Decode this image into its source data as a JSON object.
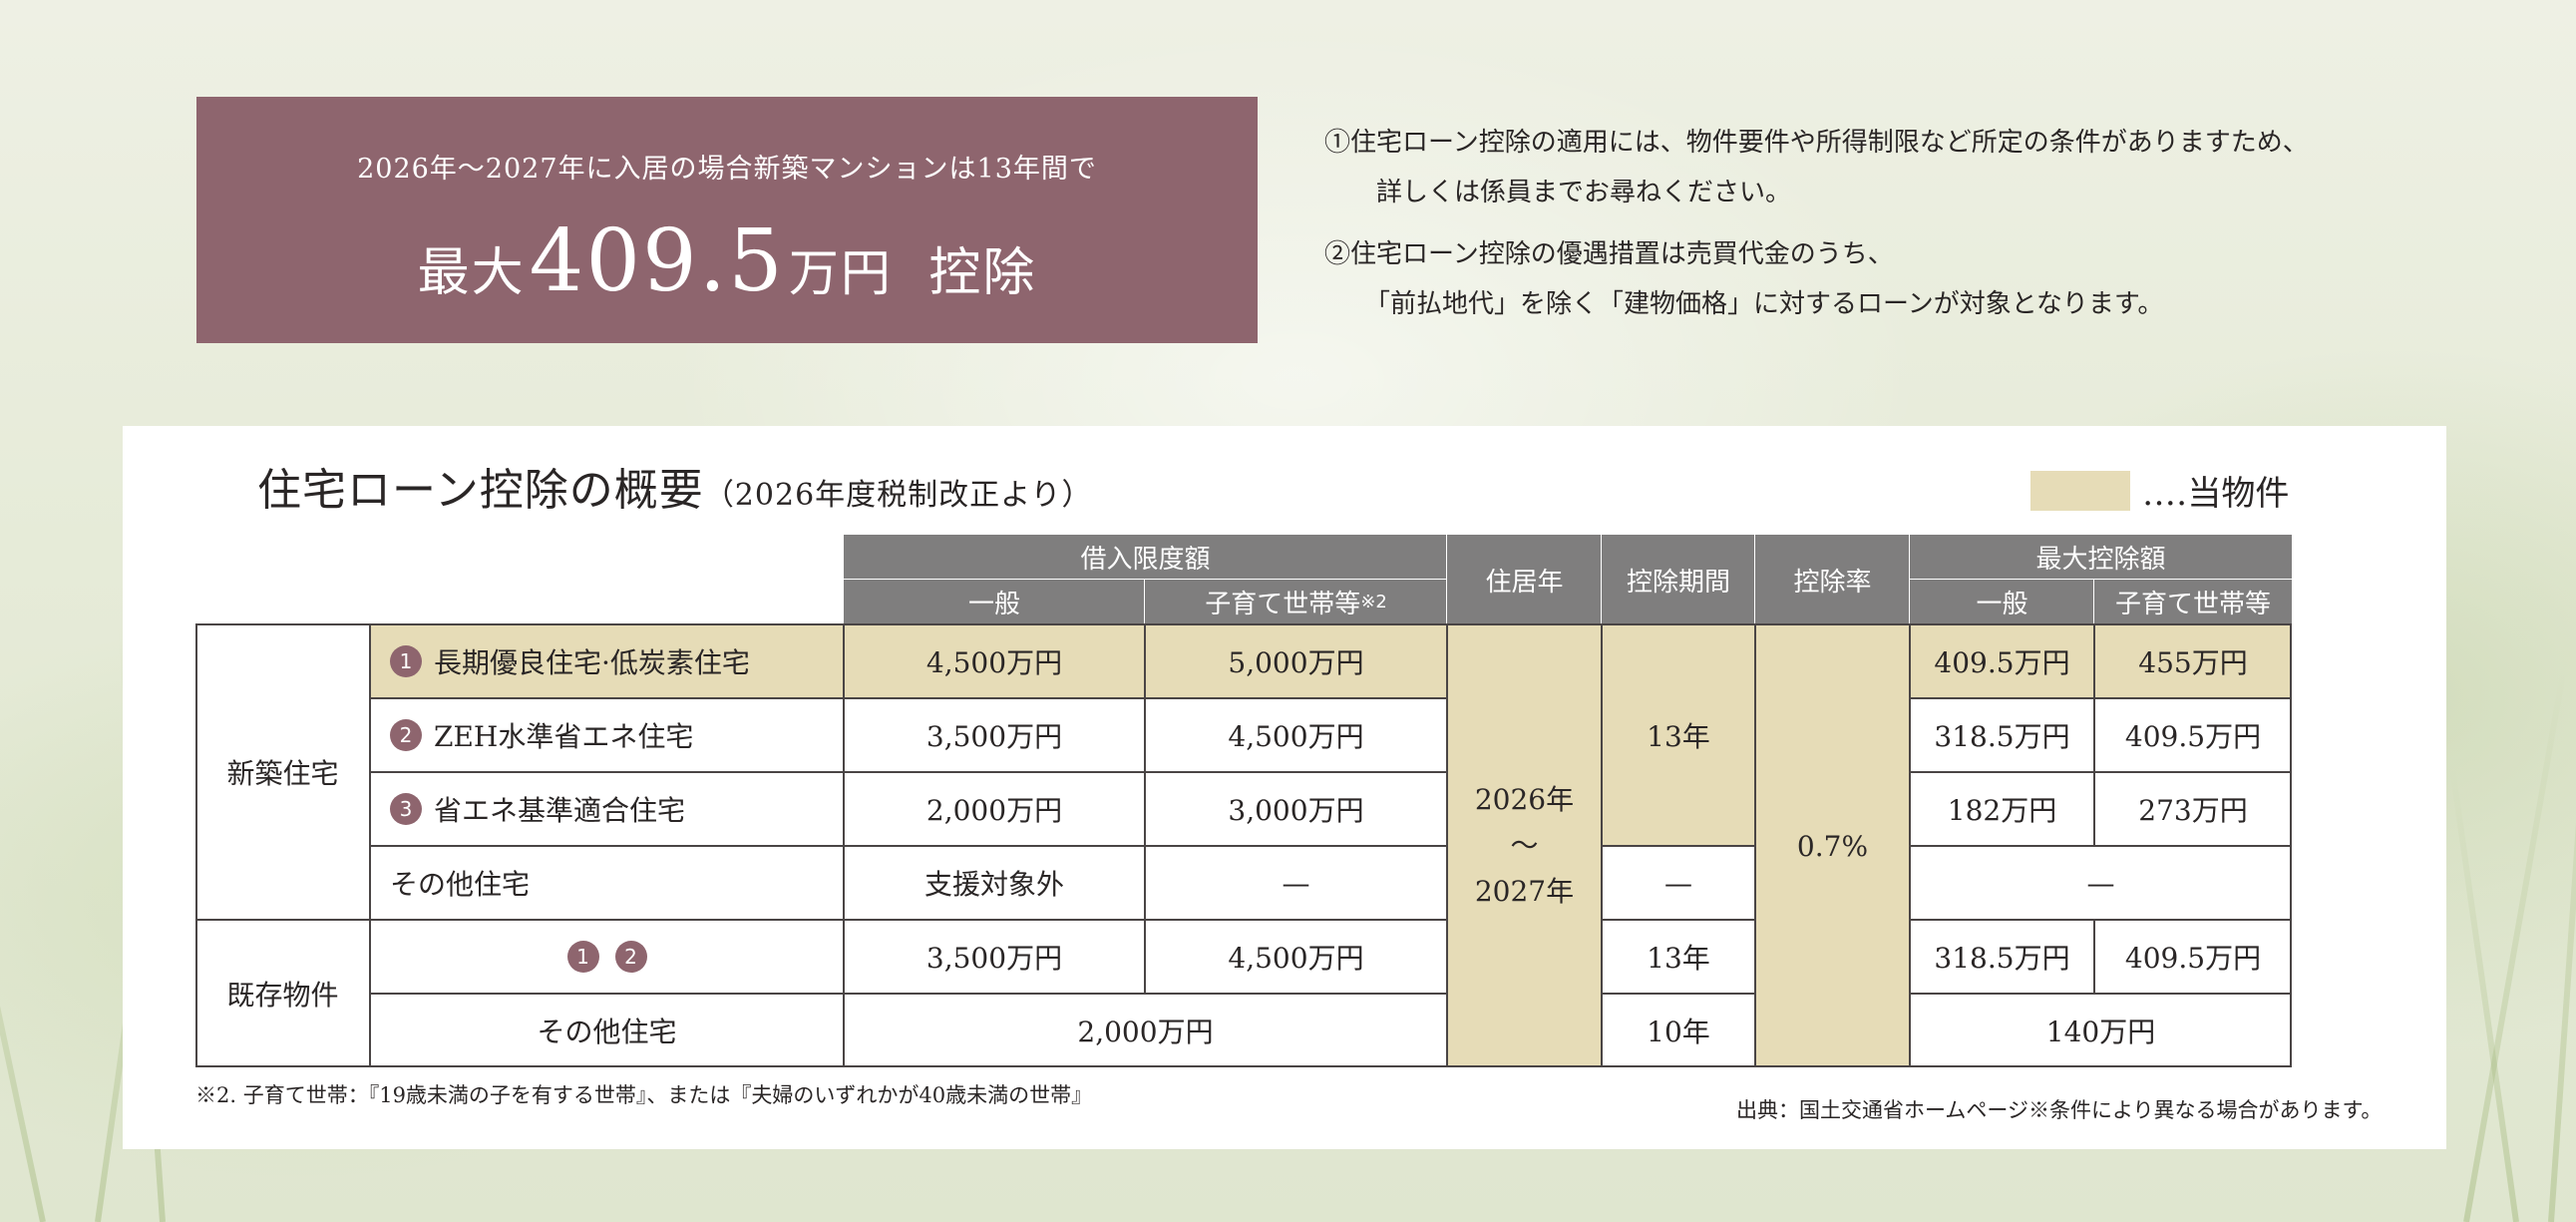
{
  "promo": {
    "subtitle": "2026年～2027年に入居の場合新築マンションは13年間で",
    "prefix": "最大",
    "amount": "409.5",
    "unit": "万円",
    "suffix": "控除"
  },
  "notes": [
    {
      "line1": "①住宅ローン控除の適用には、物件要件や所得制限など所定の条件がありますため、",
      "line2": "詳しくは係員までお尋ねください。"
    },
    {
      "line1": "②住宅ローン控除の優遇措置は売買代金のうち、",
      "line2": "「前払地代」を除く「建物価格」に対するローンが対象となります。"
    }
  ],
  "panel": {
    "title": "住宅ローン控除の概要",
    "title_sub": "（2026年度税制改正より）",
    "legend_label": "‥‥当物件"
  },
  "table": {
    "headers": {
      "borrowing_limit": "借入限度額",
      "general": "一般",
      "child_household": "子育て世帯等",
      "child_household_note": "※2",
      "residence_year": "住居年",
      "deduction_period": "控除期間",
      "deduction_rate": "控除率",
      "max_deduction": "最大控除額",
      "max_general": "一般",
      "max_child": "子育て世帯等"
    },
    "groups": {
      "new": "新築住宅",
      "existing": "既存物件"
    },
    "rows": [
      {
        "num": "1",
        "label": "長期優良住宅·低炭素住宅",
        "general": "4,500万円",
        "child": "5,000万円",
        "max_general": "409.5万円",
        "max_child": "455万円"
      },
      {
        "num": "2",
        "label": "ZEH水準省エネ住宅",
        "general": "3,500万円",
        "child": "4,500万円",
        "max_general": "318.5万円",
        "max_child": "409.5万円"
      },
      {
        "num": "3",
        "label": "省エネ基準適合住宅",
        "general": "2,000万円",
        "child": "3,000万円",
        "max_general": "182万円",
        "max_child": "273万円"
      },
      {
        "label": "その他住宅",
        "general": "支援対象外",
        "child": "—",
        "period": "—",
        "max": "—"
      },
      {
        "nums": [
          "1",
          "2"
        ],
        "general": "3,500万円",
        "child": "4,500万円",
        "period": "13年",
        "max_general": "318.5万円",
        "max_child": "409.5万円"
      },
      {
        "label": "その他住宅",
        "limit": "2,000万円",
        "period": "10年",
        "max": "140万円"
      }
    ],
    "new_period": "13年",
    "residence_from": "2026年",
    "residence_tilde": "～",
    "residence_to": "2027年",
    "rate": "0.7%"
  },
  "footnote": "※2. 子育て世帯：『19歳未満の子を有する世帯』、または『夫婦のいずれかが40歳未満の世帯』",
  "source": "出典：国土交通省ホームページ※条件により異なる場合があります。",
  "colors": {
    "accent": "#8e656e",
    "highlight": "#e6dcb7",
    "header": "#7f7e7e"
  }
}
